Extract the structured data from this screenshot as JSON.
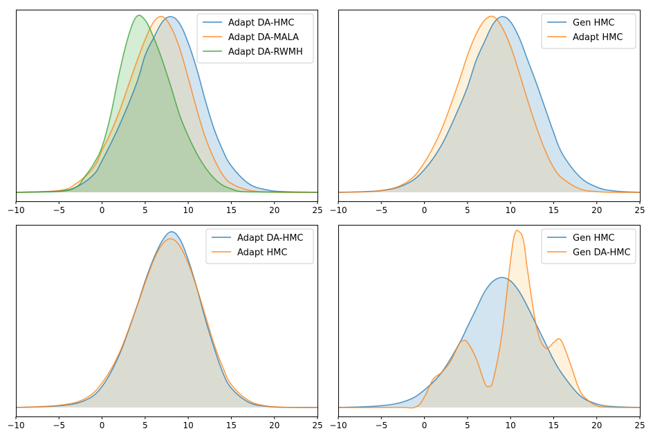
{
  "figure": {
    "colors": {
      "blue": "#1f77b4",
      "orange": "#ff7f0e",
      "green": "#2ca02c",
      "orange_fill": "#ffbe55"
    }
  },
  "chart_data": [
    {
      "type": "area",
      "panel": "top-left",
      "title": "",
      "xlabel": "",
      "ylabel": "",
      "xlim": [
        -10,
        25
      ],
      "ylim": [
        0,
        1.1
      ],
      "xticks": [
        -10,
        -5,
        0,
        5,
        10,
        15,
        20,
        25
      ],
      "xtick_labels": [
        "−10",
        "−5",
        "0",
        "5",
        "10",
        "15",
        "20",
        "25"
      ],
      "legend": {
        "location": "upper right",
        "entries": [
          "Adapt DA-HMC",
          "Adapt DA-MALA",
          "Adapt DA-RWMH"
        ]
      },
      "series": [
        {
          "name": "Adapt DA-HMC",
          "color": "#1f77b4",
          "fill_alpha": 0.2,
          "x": [
            -10,
            -5,
            -3,
            -1,
            0,
            2,
            4,
            5,
            6,
            7,
            8,
            9,
            10,
            11,
            12,
            13,
            14,
            15,
            17,
            19,
            21,
            25
          ],
          "y": [
            0,
            0.008,
            0.03,
            0.1,
            0.18,
            0.38,
            0.62,
            0.78,
            0.88,
            0.97,
            1,
            0.96,
            0.85,
            0.7,
            0.52,
            0.36,
            0.24,
            0.15,
            0.05,
            0.015,
            0.004,
            0
          ]
        },
        {
          "name": "Adapt DA-MALA",
          "color": "#ff7f0e",
          "fill_alpha": 0.2,
          "x": [
            -10,
            -5,
            -3,
            -1,
            0,
            1,
            2,
            3,
            4,
            5,
            6,
            7,
            8,
            9,
            10,
            11,
            12,
            13,
            14,
            15,
            17,
            19,
            21,
            25
          ],
          "y": [
            0,
            0.01,
            0.05,
            0.14,
            0.24,
            0.34,
            0.46,
            0.6,
            0.74,
            0.87,
            0.97,
            1,
            0.94,
            0.82,
            0.65,
            0.47,
            0.31,
            0.19,
            0.1,
            0.05,
            0.012,
            0.003,
            0,
            0
          ]
        },
        {
          "name": "Adapt DA-RWMH",
          "color": "#2ca02c",
          "fill_alpha": 0.2,
          "x": [
            -10,
            -5,
            -3,
            -2,
            -1,
            0,
            1,
            2,
            3,
            4,
            5,
            6,
            7,
            8,
            9,
            10,
            11,
            12,
            13,
            14,
            15,
            16,
            18,
            20,
            25
          ],
          "y": [
            0,
            0.005,
            0.03,
            0.09,
            0.16,
            0.26,
            0.44,
            0.68,
            0.88,
            1,
            0.98,
            0.88,
            0.75,
            0.6,
            0.44,
            0.32,
            0.22,
            0.14,
            0.08,
            0.04,
            0.02,
            0.005,
            0.002,
            0.001,
            0
          ]
        }
      ]
    },
    {
      "type": "area",
      "panel": "top-right",
      "title": "",
      "xlabel": "",
      "ylabel": "",
      "xlim": [
        -10,
        25
      ],
      "ylim": [
        0,
        1.1
      ],
      "xticks": [
        -10,
        -5,
        0,
        5,
        10,
        15,
        20,
        25
      ],
      "xtick_labels": [
        "−10",
        "−5",
        "0",
        "5",
        "10",
        "15",
        "20",
        "25"
      ],
      "legend": {
        "location": "upper right",
        "entries": [
          "Gen HMC",
          "Adapt HMC"
        ]
      },
      "series": [
        {
          "name": "Gen HMC",
          "color": "#1f77b4",
          "fill_alpha": 0.2,
          "x": [
            -10,
            -5,
            -2,
            0,
            2,
            4,
            5,
            6,
            7,
            8,
            9,
            10,
            11,
            12,
            13,
            14,
            15,
            16,
            18,
            20,
            22,
            25
          ],
          "y": [
            0,
            0.01,
            0.05,
            0.13,
            0.27,
            0.48,
            0.6,
            0.75,
            0.86,
            0.96,
            1,
            0.97,
            0.88,
            0.75,
            0.62,
            0.48,
            0.34,
            0.22,
            0.09,
            0.03,
            0.008,
            0
          ]
        },
        {
          "name": "Adapt HMC",
          "color": "#ff7f0e",
          "fill_alpha": 0.2,
          "x": [
            -10,
            -5,
            -2,
            0,
            2,
            4,
            5,
            6,
            7,
            8,
            9,
            10,
            11,
            12,
            13,
            14,
            15,
            16,
            18,
            20,
            22,
            25
          ],
          "y": [
            0,
            0.01,
            0.06,
            0.17,
            0.36,
            0.63,
            0.78,
            0.9,
            0.98,
            1,
            0.94,
            0.83,
            0.68,
            0.52,
            0.37,
            0.24,
            0.14,
            0.08,
            0.02,
            0.004,
            0,
            0
          ]
        }
      ]
    },
    {
      "type": "area",
      "panel": "bottom-left",
      "title": "",
      "xlabel": "",
      "ylabel": "",
      "xlim": [
        -10,
        25
      ],
      "ylim": [
        0,
        1.1
      ],
      "xticks": [
        -10,
        -5,
        0,
        5,
        10,
        15,
        20,
        25
      ],
      "xtick_labels": [
        "−10",
        "−5",
        "0",
        "5",
        "10",
        "15",
        "20",
        "25"
      ],
      "legend": {
        "location": "upper right",
        "entries": [
          "Adapt DA-HMC",
          "Adapt HMC"
        ]
      },
      "series": [
        {
          "name": "Adapt DA-HMC",
          "color": "#1f77b4",
          "fill_alpha": 0.2,
          "x": [
            -10,
            -5,
            -2,
            0,
            2,
            4,
            5,
            6,
            7,
            8,
            9,
            10,
            11,
            12,
            13,
            14,
            15,
            17,
            19,
            21,
            25
          ],
          "y": [
            0,
            0.01,
            0.04,
            0.12,
            0.3,
            0.57,
            0.72,
            0.85,
            0.95,
            1,
            0.96,
            0.84,
            0.68,
            0.5,
            0.34,
            0.2,
            0.11,
            0.03,
            0.007,
            0.001,
            0
          ]
        },
        {
          "name": "Adapt HMC",
          "color": "#ff7f0e",
          "fill_alpha": 0.2,
          "x": [
            -10,
            -5,
            -2,
            0,
            2,
            4,
            5,
            6,
            7,
            8,
            9,
            10,
            11,
            12,
            13,
            14,
            15,
            17,
            19,
            21,
            25
          ],
          "y": [
            0,
            0.012,
            0.05,
            0.14,
            0.31,
            0.57,
            0.71,
            0.84,
            0.93,
            0.96,
            0.92,
            0.82,
            0.68,
            0.52,
            0.36,
            0.23,
            0.13,
            0.04,
            0.009,
            0.002,
            0
          ]
        }
      ]
    },
    {
      "type": "area",
      "panel": "bottom-right",
      "title": "",
      "xlabel": "",
      "ylabel": "",
      "xlim": [
        -10,
        25
      ],
      "ylim": [
        0,
        1.1
      ],
      "xticks": [
        -10,
        -5,
        0,
        5,
        10,
        15,
        20,
        25
      ],
      "xtick_labels": [
        "−10",
        "−5",
        "0",
        "5",
        "10",
        "15",
        "20",
        "25"
      ],
      "legend": {
        "location": "upper right",
        "entries": [
          "Gen HMC",
          "Gen DA-HMC"
        ]
      },
      "series": [
        {
          "name": "Gen HMC",
          "color": "#1f77b4",
          "fill_alpha": 0.2,
          "x": [
            -10,
            -5,
            -2,
            0,
            2,
            4,
            5,
            6,
            7,
            8,
            9,
            10,
            11,
            12,
            13,
            14,
            15,
            16,
            18,
            20,
            22,
            25
          ],
          "y": [
            0,
            0.01,
            0.04,
            0.1,
            0.2,
            0.36,
            0.46,
            0.56,
            0.66,
            0.72,
            0.74,
            0.72,
            0.66,
            0.57,
            0.47,
            0.37,
            0.27,
            0.19,
            0.07,
            0.02,
            0.005,
            0
          ]
        },
        {
          "name": "Gen DA-HMC",
          "color": "#ff7f0e",
          "fill_alpha": 0.2,
          "x": [
            -10,
            -3,
            -1,
            0,
            1,
            2,
            3,
            4,
            4.5,
            5,
            6,
            7,
            7.5,
            8,
            9,
            10,
            10.5,
            11,
            11.5,
            12,
            13,
            14,
            15,
            15.5,
            16,
            17,
            18,
            19,
            20,
            21,
            25
          ],
          "y": [
            0,
            0,
            0.003,
            0.06,
            0.16,
            0.2,
            0.26,
            0.36,
            0.38,
            0.37,
            0.28,
            0.14,
            0.12,
            0.16,
            0.42,
            0.84,
            0.99,
            1,
            0.95,
            0.77,
            0.46,
            0.34,
            0.37,
            0.39,
            0.37,
            0.24,
            0.1,
            0.04,
            0.01,
            0.002,
            0
          ]
        }
      ]
    }
  ]
}
